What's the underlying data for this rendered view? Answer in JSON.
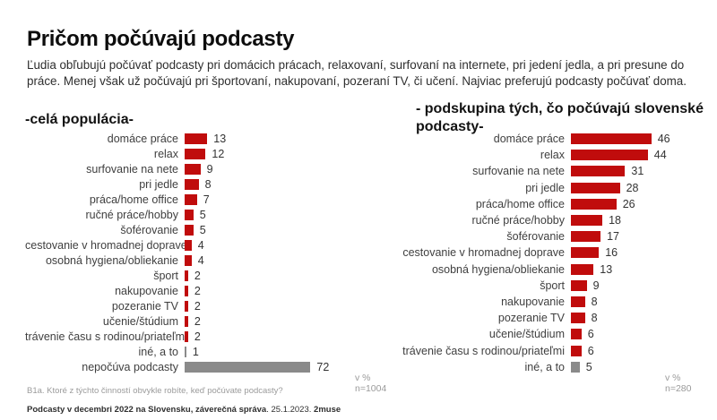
{
  "page": {
    "title": "Pričom počúvajú podcasty",
    "subtitle": "Ľudia obľubujú počúvať podcasty pri domácich prácach, relaxovaní, surfovaní na internete, pri jedení jedla, a pri presune do práce. Menej však už počúvajú pri športovaní, nakupovaní, pozeraní TV, či učení. Najviac preferujú podcasty počúvať doma."
  },
  "colors": {
    "bar_red": "#c00c0c",
    "bar_gray": "#8a8a8a"
  },
  "chart_data": [
    {
      "type": "bar",
      "orientation": "horizontal",
      "title": "-celá populácia-",
      "unit_label": "v %",
      "sample_label": "n=1004",
      "xlim": [
        0,
        80
      ],
      "grid": false,
      "categories": [
        "domáce práce",
        "relax",
        "surfovanie na nete",
        "pri jedle",
        "práca/home office",
        "ručné práce/hobby",
        "šoférovanie",
        "cestovanie v hromadnej doprave",
        "osobná hygiena/obliekanie",
        "šport",
        "nakupovanie",
        "pozeranie TV",
        "učenie/štúdium",
        "trávenie času s rodinou/priateľmi",
        "iné, a to",
        "nepočúva podcasty"
      ],
      "values": [
        13,
        12,
        9,
        8,
        7,
        5,
        5,
        4,
        4,
        2,
        2,
        2,
        2,
        2,
        1,
        72
      ],
      "bar_colors": [
        "red",
        "red",
        "red",
        "red",
        "red",
        "red",
        "red",
        "red",
        "red",
        "red",
        "red",
        "red",
        "red",
        "red",
        "gray",
        "gray"
      ]
    },
    {
      "type": "bar",
      "orientation": "horizontal",
      "title": "- podskupina tých, čo počúvajú slovenské podcasty-",
      "unit_label": "v %",
      "sample_label": "n=280",
      "xlim": [
        0,
        80
      ],
      "grid": false,
      "categories": [
        "domáce práce",
        "relax",
        "surfovanie na nete",
        "pri jedle",
        "práca/home office",
        "ručné práce/hobby",
        "šoférovanie",
        "cestovanie v hromadnej doprave",
        "osobná hygiena/obliekanie",
        "šport",
        "nakupovanie",
        "pozeranie TV",
        "učenie/štúdium",
        "trávenie času s rodinou/priateľmi",
        "iné, a to"
      ],
      "values": [
        46,
        44,
        31,
        28,
        26,
        18,
        17,
        16,
        13,
        9,
        8,
        8,
        6,
        6,
        5
      ],
      "bar_colors": [
        "red",
        "red",
        "red",
        "red",
        "red",
        "red",
        "red",
        "red",
        "red",
        "red",
        "red",
        "red",
        "red",
        "red",
        "gray"
      ]
    }
  ],
  "footnote": "B1a. Ktoré z týchto činností obvykle robíte, keď počúvate podcasty?",
  "source": {
    "bold_part": "Podcasty v decembri 2022 na Slovensku, záverečná správa",
    "regular_part": ". 25.1.2023. ",
    "brand": "2muse"
  }
}
